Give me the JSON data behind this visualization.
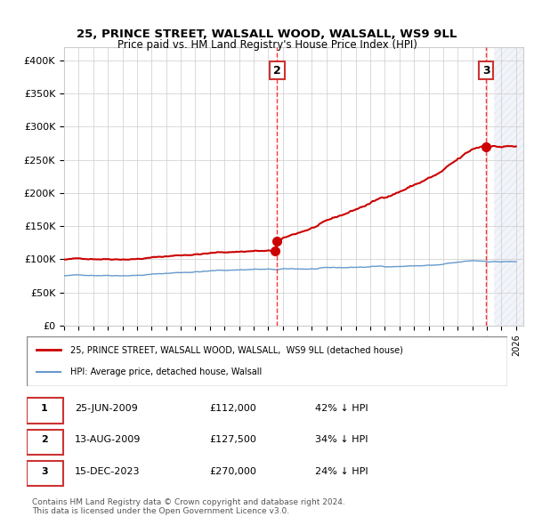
{
  "title1": "25, PRINCE STREET, WALSALL WOOD, WALSALL, WS9 9LL",
  "title2": "Price paid vs. HM Land Registry's House Price Index (HPI)",
  "ylabel": "",
  "xlabel": "",
  "ylim": [
    0,
    420000
  ],
  "yticks": [
    0,
    50000,
    100000,
    150000,
    200000,
    250000,
    300000,
    350000,
    400000
  ],
  "ytick_labels": [
    "£0",
    "£50K",
    "£100K",
    "£150K",
    "£200K",
    "£250K",
    "£300K",
    "£350K",
    "£400K"
  ],
  "xlim_start": 1995.0,
  "xlim_end": 2026.5,
  "line1_color": "#cc0000",
  "line2_color": "#6699cc",
  "transaction_color": "#cc0000",
  "legend_label1": "25, PRINCE STREET, WALSALL WOOD, WALSALL,  WS9 9LL (detached house)",
  "legend_label2": "HPI: Average price, detached house, Walsall",
  "transactions": [
    {
      "label": "1",
      "date_num": 2009.48,
      "price": 112000,
      "marker_y": 112000
    },
    {
      "label": "2",
      "date_num": 2009.62,
      "price": 127500,
      "marker_y": 127500
    },
    {
      "label": "3",
      "date_num": 2023.96,
      "price": 270000,
      "marker_y": 270000
    }
  ],
  "table_rows": [
    {
      "num": "1",
      "date": "25-JUN-2009",
      "price": "£112,000",
      "note": "42% ↓ HPI"
    },
    {
      "num": "2",
      "date": "13-AUG-2009",
      "price": "£127,500",
      "note": "34% ↓ HPI"
    },
    {
      "num": "3",
      "date": "15-DEC-2023",
      "price": "£270,000",
      "note": "24% ↓ HPI"
    }
  ],
  "footer": "Contains HM Land Registry data © Crown copyright and database right 2024.\nThis data is licensed under the Open Government Licence v3.0.",
  "background_color": "#ffffff",
  "grid_color": "#cccccc",
  "hatch_color": "#aabbdd"
}
